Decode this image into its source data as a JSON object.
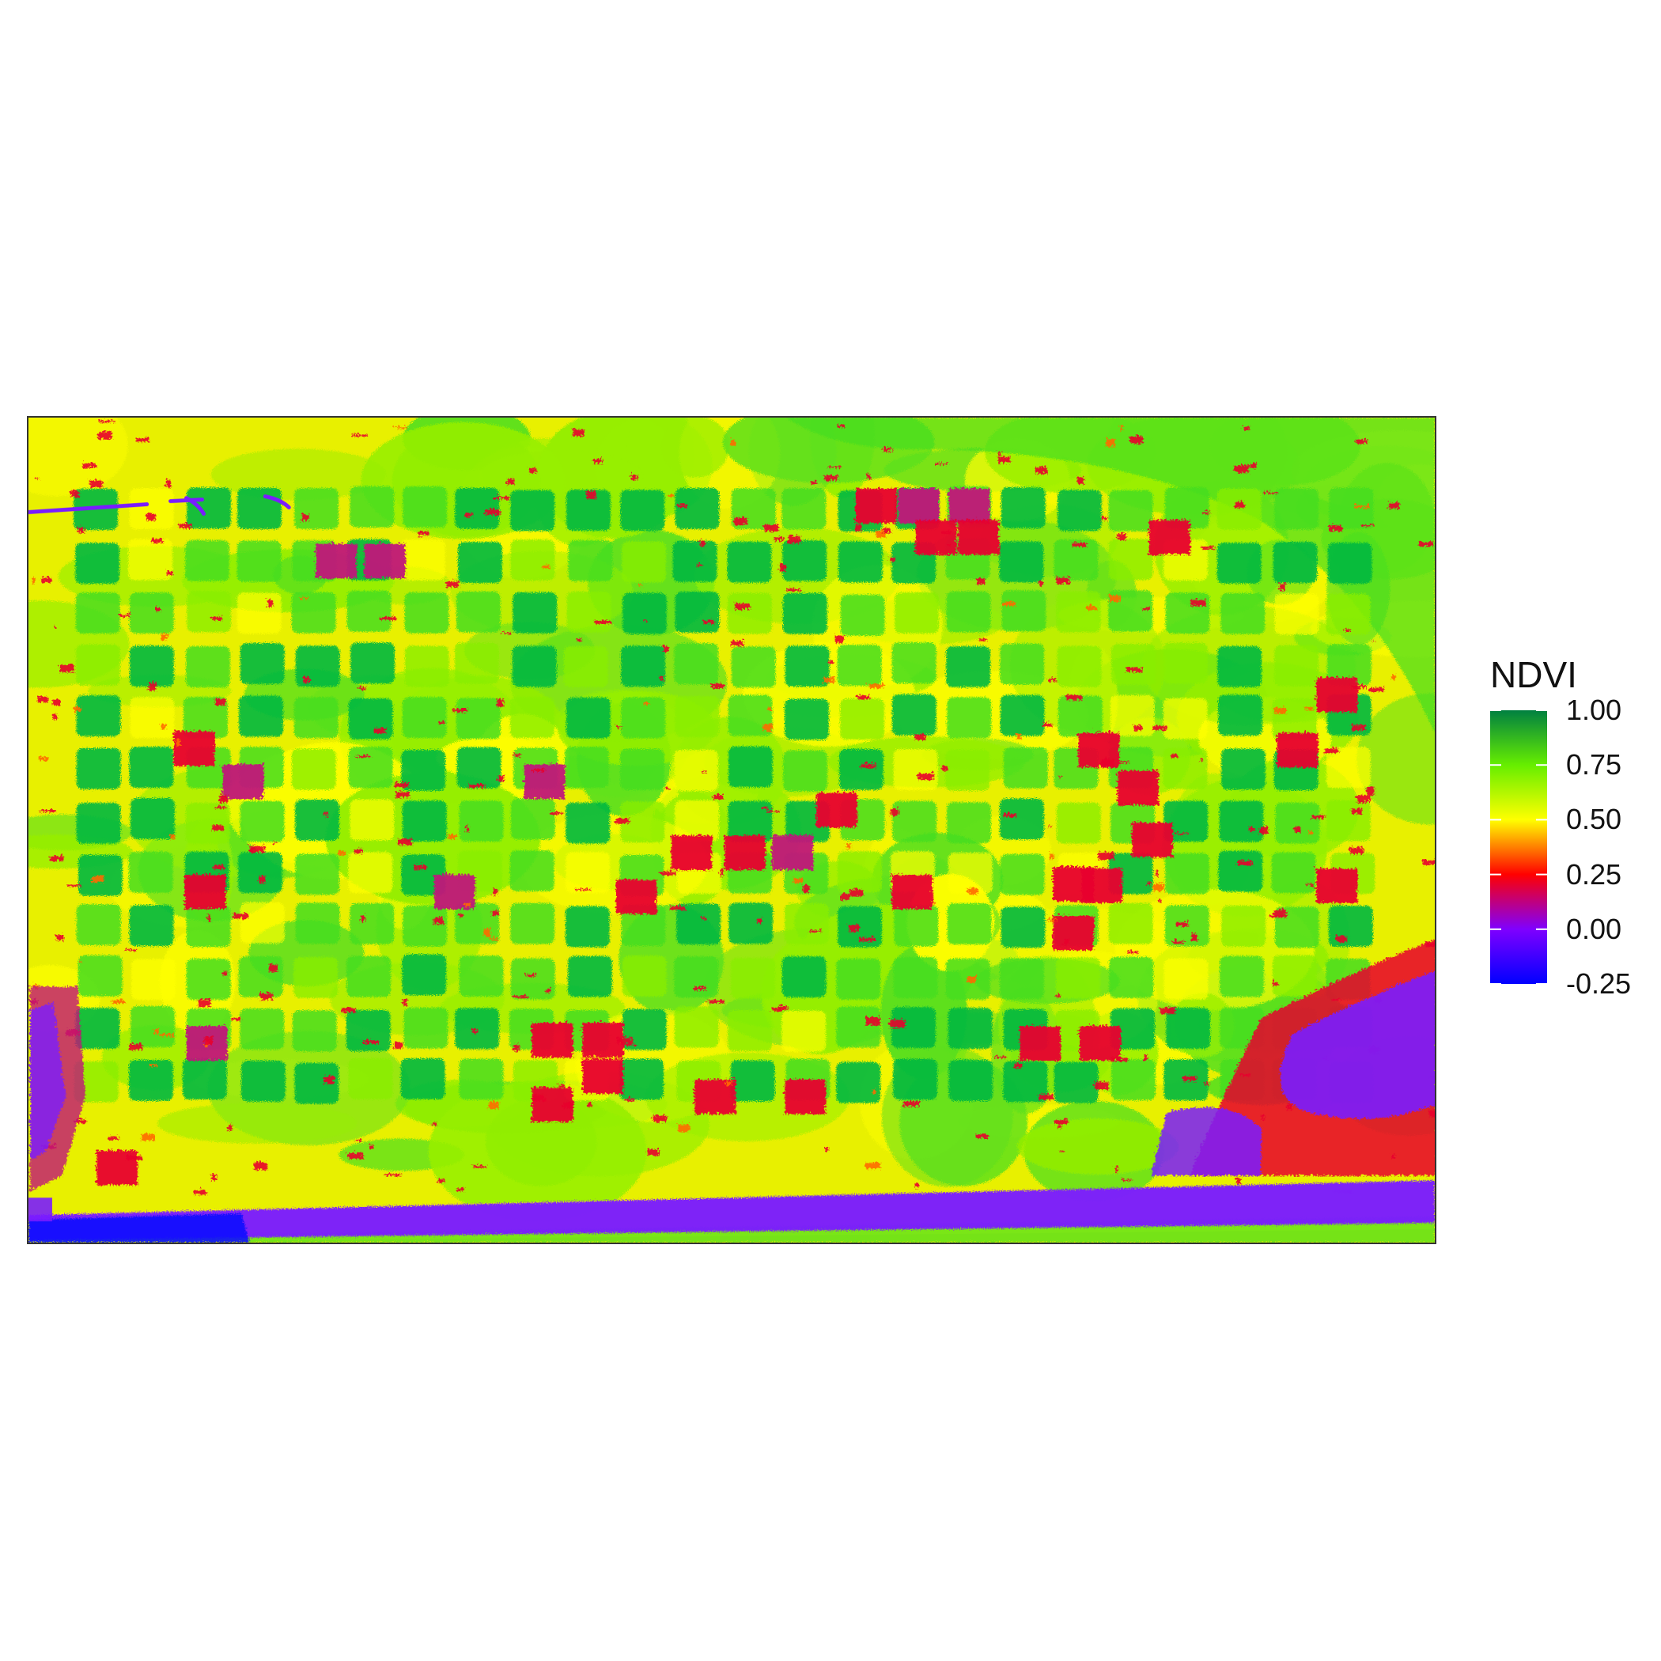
{
  "legend": {
    "title": "NDVI",
    "min": -0.25,
    "max": 1.0,
    "breaks": [
      {
        "value": 1.0,
        "label": "1.00"
      },
      {
        "value": 0.75,
        "label": "0.75"
      },
      {
        "value": 0.5,
        "label": "0.50"
      },
      {
        "value": 0.25,
        "label": "0.25"
      },
      {
        "value": 0.0,
        "label": "0.00"
      },
      {
        "value": -0.25,
        "label": "-0.25"
      }
    ],
    "color_stops": [
      {
        "value": -0.25,
        "color": "#0000ff"
      },
      {
        "value": 0.0,
        "color": "#7f00ff"
      },
      {
        "value": 0.25,
        "color": "#ff0000"
      },
      {
        "value": 0.5,
        "color": "#ffff00"
      },
      {
        "value": 0.75,
        "color": "#66ee00"
      },
      {
        "value": 1.0,
        "color": "#008040"
      }
    ]
  },
  "map": {
    "background_color": "#e8f000",
    "colors": {
      "vegetation_dense": "#00b840",
      "vegetation_medium": "#44dd22",
      "vegetation_light": "#88ee00",
      "sparse": "#ffff00",
      "bare_soil": "#e8002e",
      "water_road": "#7a1cff",
      "water_deep": "#0a10ff"
    }
  }
}
